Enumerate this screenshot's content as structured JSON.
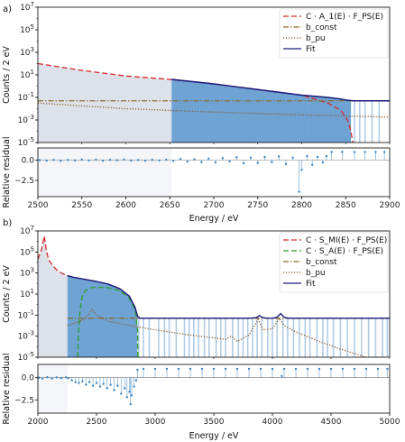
{
  "colors": {
    "theory": "#d62728",
    "theory_b": "#2ca02c",
    "bconst": "#8c6d31",
    "bpu": "#8b5a2b",
    "fit": "#1a1a7a",
    "hist": "#6fa3d4",
    "roi_excluded": "#dde2ea",
    "residual": "#3f86c1"
  },
  "chart_data": [
    {
      "panel_label": "a)",
      "type": "line",
      "xlim": [
        2500,
        2900
      ],
      "xticks": [
        2500,
        2550,
        2600,
        2650,
        2700,
        2750,
        2800,
        2850,
        2900
      ],
      "y_scale": "log",
      "ylim_exp": [
        -5,
        7
      ],
      "ytick_labels": [
        "10^-5",
        "10^-3",
        "10^-1",
        "10^1",
        "10^3",
        "10^5",
        "10^7"
      ],
      "ylabel": "Counts / 2 eV",
      "legend": {
        "position": "top-right",
        "entries": [
          {
            "key": "theory",
            "label": "C · A_1(E) · F_PS(E)",
            "style": "dashed"
          },
          {
            "key": "bconst",
            "label": "b_const",
            "style": "dashdot"
          },
          {
            "key": "bpu",
            "label": "b_pu",
            "style": "dotted"
          },
          {
            "key": "fit",
            "label": "Fit",
            "style": "solid"
          }
        ]
      },
      "excluded_region": [
        2500,
        2652
      ],
      "series": [
        {
          "key": "theory",
          "x": [
            2500,
            2550,
            2600,
            2650,
            2700,
            2750,
            2800,
            2830,
            2845,
            2852,
            2856,
            2858
          ],
          "y": [
            2.0,
            1.4,
            0.9,
            0.6,
            0.2,
            -0.3,
            -0.8,
            -1.5,
            -2.2,
            -3.0,
            -4.0,
            -5.0
          ]
        },
        {
          "key": "bconst",
          "x": [
            2500,
            2900
          ],
          "y": [
            -1.3,
            -1.3
          ]
        },
        {
          "key": "bpu",
          "x": [
            2500,
            2600,
            2700,
            2800,
            2900
          ],
          "y": [
            -1.5,
            -2.0,
            -2.3,
            -2.55,
            -2.75
          ]
        },
        {
          "key": "fit",
          "x": [
            2652,
            2700,
            2750,
            2800,
            2830,
            2845,
            2852,
            2856,
            2858,
            2900
          ],
          "y": [
            0.6,
            0.2,
            -0.3,
            -0.8,
            -1.0,
            -1.15,
            -1.25,
            -1.28,
            -1.3,
            -1.3
          ]
        }
      ],
      "hist_top": {
        "x": [
          2652,
          2700,
          2750,
          2800,
          2830,
          2845,
          2852,
          2856
        ],
        "y": [
          0.6,
          0.2,
          -0.3,
          -0.8,
          -1.0,
          -1.15,
          -1.25,
          -1.3
        ]
      },
      "gap_bins": [
        2742,
        2775,
        2800,
        2803,
        2812,
        2818,
        2822,
        2826,
        2832,
        2838,
        2841,
        2847,
        2860,
        2866,
        2872,
        2880,
        2888
      ],
      "residual": {
        "ylabel": "Relative residual",
        "xlabel": "Energy / eV",
        "ylim": [
          -4.5,
          1.5
        ],
        "yticks": [
          0.0,
          -2.5
        ],
        "ytick_labels": [
          "0.0",
          "−2.5"
        ],
        "points": [
          [
            2502,
            0.0
          ],
          [
            2510,
            -0.05
          ],
          [
            2518,
            0.04
          ],
          [
            2526,
            -0.08
          ],
          [
            2534,
            0.02
          ],
          [
            2542,
            -0.04
          ],
          [
            2550,
            0.06
          ],
          [
            2558,
            -0.03
          ],
          [
            2566,
            0.05
          ],
          [
            2574,
            -0.07
          ],
          [
            2582,
            0.03
          ],
          [
            2590,
            -0.02
          ],
          [
            2598,
            0.07
          ],
          [
            2606,
            -0.05
          ],
          [
            2614,
            0.02
          ],
          [
            2622,
            -0.06
          ],
          [
            2630,
            0.04
          ],
          [
            2638,
            -0.03
          ],
          [
            2646,
            0.05
          ],
          [
            2654,
            -0.1
          ],
          [
            2662,
            0.15
          ],
          [
            2670,
            -0.2
          ],
          [
            2678,
            0.1
          ],
          [
            2686,
            -0.25
          ],
          [
            2694,
            0.2
          ],
          [
            2702,
            -0.3
          ],
          [
            2710,
            0.25
          ],
          [
            2718,
            -0.15
          ],
          [
            2726,
            0.35
          ],
          [
            2734,
            -0.4
          ],
          [
            2742,
            0.3
          ],
          [
            2750,
            -0.35
          ],
          [
            2758,
            0.4
          ],
          [
            2766,
            -0.25
          ],
          [
            2774,
            0.45
          ],
          [
            2782,
            -0.5
          ],
          [
            2790,
            0.3
          ],
          [
            2797,
            -3.9
          ],
          [
            2800,
            -1.2
          ],
          [
            2806,
            0.5
          ],
          [
            2812,
            -0.6
          ],
          [
            2818,
            0.4
          ],
          [
            2824,
            -0.3
          ],
          [
            2828,
            0.5
          ],
          [
            2834,
            1.0
          ],
          [
            2846,
            1.0
          ],
          [
            2860,
            1.0
          ],
          [
            2872,
            1.0
          ],
          [
            2884,
            1.0
          ],
          [
            2894,
            1.0
          ]
        ]
      },
      "xlabel": "Energy / eV"
    },
    {
      "panel_label": "b)",
      "type": "line",
      "xlim": [
        2000,
        5000
      ],
      "xticks": [
        2000,
        2500,
        3000,
        3500,
        4000,
        4500,
        5000
      ],
      "y_scale": "log",
      "ylim_exp": [
        -5,
        7
      ],
      "ytick_labels": [
        "10^-5",
        "10^-3",
        "10^-1",
        "10^1",
        "10^3",
        "10^5",
        "10^7"
      ],
      "ylabel": "Counts / 2 eV",
      "legend": {
        "position": "top-right",
        "entries": [
          {
            "key": "theory",
            "label": "C · S_MI(E) · F_PS(E)",
            "style": "dashed"
          },
          {
            "key": "theory_b",
            "label": "C · S_A(E) · F_PS(E)",
            "style": "dashed"
          },
          {
            "key": "bconst",
            "label": "b_const",
            "style": "dashdot"
          },
          {
            "key": "bpu",
            "label": "b_pu",
            "style": "dotted"
          },
          {
            "key": "fit",
            "label": "Fit",
            "style": "solid"
          }
        ]
      },
      "excluded_region": [
        2000,
        2252
      ],
      "series": [
        {
          "key": "theory",
          "x": [
            2000,
            2030,
            2055,
            2070,
            2090,
            2120,
            2160,
            2200,
            2250,
            2300,
            2400,
            2500,
            2600,
            2700,
            2780,
            2830,
            2850
          ],
          "y": [
            4.3,
            5.2,
            6.5,
            5.3,
            4.3,
            3.8,
            3.3,
            3.0,
            2.75,
            2.6,
            2.4,
            2.2,
            1.95,
            1.5,
            0.8,
            -0.3,
            -1.3
          ]
        },
        {
          "key": "theory_b",
          "x": [
            2340,
            2345,
            2360,
            2380,
            2410,
            2450,
            2500,
            2600,
            2700,
            2780,
            2830,
            2850,
            2852
          ],
          "y": [
            -5.0,
            -3.0,
            -0.5,
            0.9,
            1.4,
            1.6,
            1.65,
            1.6,
            1.3,
            0.6,
            -0.5,
            -2.5,
            -5.0
          ]
        },
        {
          "key": "bconst",
          "x": [
            2252,
            5000
          ],
          "y": [
            -1.3,
            -1.3
          ]
        },
        {
          "key": "bpu",
          "x": [
            2252,
            2300,
            2380,
            2440,
            2460,
            2500,
            2600,
            2800,
            3000,
            3300,
            3600,
            3650,
            3700,
            3800,
            3880,
            3920,
            4000,
            4060,
            4100,
            4200,
            4400,
            4600,
            4800,
            5000
          ],
          "y": [
            -2.0,
            -1.8,
            -1.5,
            -0.8,
            -0.4,
            -1.0,
            -1.6,
            -2.0,
            -2.4,
            -2.9,
            -3.3,
            -3.0,
            -3.5,
            -2.9,
            -1.4,
            -2.4,
            -2.3,
            -1.3,
            -2.0,
            -2.6,
            -3.5,
            -4.3,
            -5.0,
            -5.0
          ]
        },
        {
          "key": "fit",
          "x": [
            2252,
            2300,
            2400,
            2500,
            2600,
            2700,
            2780,
            2830,
            2850,
            2870,
            3800,
            3860,
            3890,
            3920,
            3960,
            4000,
            4040,
            4070,
            4100,
            4140,
            5000
          ],
          "y": [
            2.75,
            2.6,
            2.4,
            2.2,
            1.95,
            1.5,
            0.8,
            -0.3,
            -1.1,
            -1.3,
            -1.3,
            -1.25,
            -1.05,
            -1.25,
            -1.3,
            -1.3,
            -1.2,
            -0.85,
            -1.2,
            -1.3,
            -1.3
          ]
        }
      ],
      "hist_top": {
        "x": [
          2252,
          2300,
          2400,
          2500,
          2600,
          2700,
          2780,
          2830,
          2848
        ],
        "y": [
          2.75,
          2.6,
          2.4,
          2.2,
          1.95,
          1.5,
          0.8,
          -0.3,
          -1.2
        ]
      },
      "gap_bins": [
        2860,
        2900,
        2950,
        3030,
        3080,
        3120,
        3180,
        3250,
        3290,
        3330,
        3370,
        3420,
        3460,
        3520,
        3560,
        3600,
        3660,
        3710,
        3750,
        3790,
        3830,
        3870,
        3910,
        3960,
        4000,
        4040,
        4090,
        4130,
        4180,
        4230,
        4280,
        4320,
        4380,
        4430,
        4470,
        4520,
        4580,
        4640,
        4700,
        4760,
        4820,
        4880,
        4940,
        4980
      ],
      "residual": {
        "ylabel": "Relative residual",
        "xlabel": "Energy / eV",
        "ylim": [
          -4.0,
          1.5
        ],
        "yticks": [
          0.0,
          -2.5
        ],
        "ytick_labels": [
          "0.0",
          "−2.5"
        ],
        "points": [
          [
            2010,
            0.0
          ],
          [
            2040,
            -0.1
          ],
          [
            2080,
            0.05
          ],
          [
            2120,
            -0.08
          ],
          [
            2160,
            0.03
          ],
          [
            2200,
            -0.05
          ],
          [
            2240,
            0.04
          ],
          [
            2260,
            -0.05
          ],
          [
            2290,
            -0.3
          ],
          [
            2320,
            -0.5
          ],
          [
            2350,
            -0.6
          ],
          [
            2380,
            -0.4
          ],
          [
            2410,
            -0.8
          ],
          [
            2440,
            -0.5
          ],
          [
            2470,
            -0.9
          ],
          [
            2500,
            -0.6
          ],
          [
            2530,
            -1.0
          ],
          [
            2560,
            -0.7
          ],
          [
            2590,
            -1.2
          ],
          [
            2620,
            -0.8
          ],
          [
            2650,
            -1.4
          ],
          [
            2680,
            -0.9
          ],
          [
            2710,
            -1.8
          ],
          [
            2740,
            -1.2
          ],
          [
            2760,
            -2.2
          ],
          [
            2780,
            -1.6
          ],
          [
            2790,
            -3.0
          ],
          [
            2800,
            -2.0
          ],
          [
            2820,
            -1.0
          ],
          [
            2838,
            -0.3
          ],
          [
            2850,
            0.9
          ],
          [
            2900,
            1.0
          ],
          [
            3000,
            1.0
          ],
          [
            3100,
            1.0
          ],
          [
            3200,
            1.0
          ],
          [
            3300,
            1.0
          ],
          [
            3400,
            1.0
          ],
          [
            3500,
            1.0
          ],
          [
            3600,
            1.0
          ],
          [
            3700,
            1.0
          ],
          [
            3800,
            1.0
          ],
          [
            3900,
            1.0
          ],
          [
            4000,
            1.0
          ],
          [
            4080,
            0.2
          ],
          [
            4100,
            1.0
          ],
          [
            4200,
            1.0
          ],
          [
            4300,
            1.0
          ],
          [
            4400,
            1.0
          ],
          [
            4500,
            1.0
          ],
          [
            4600,
            1.0
          ],
          [
            4700,
            1.0
          ],
          [
            4800,
            1.0
          ],
          [
            4900,
            1.0
          ],
          [
            4980,
            1.0
          ]
        ]
      },
      "xlabel": "Energy / eV"
    }
  ]
}
